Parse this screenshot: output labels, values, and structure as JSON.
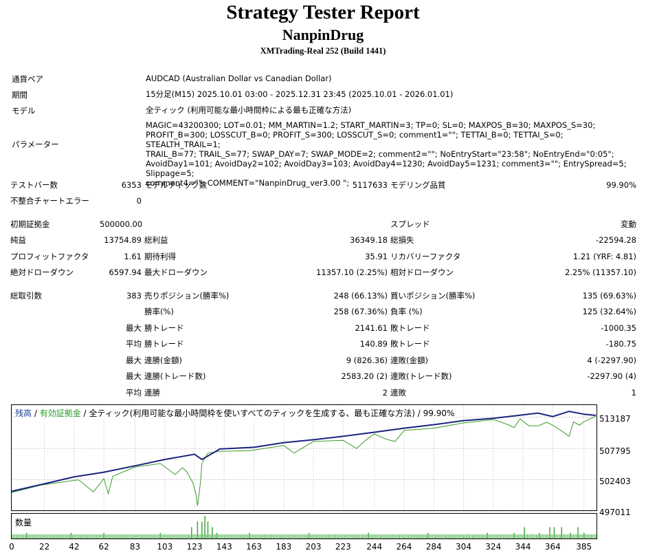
{
  "header": {
    "title": "Strategy Tester Report",
    "subtitle": "NanpinDrug",
    "account": "XMTrading-Real 252 (Build 1441)"
  },
  "info": {
    "pair_label": "通貨ペア",
    "pair": "AUDCAD (Australian Dollar vs Canadian Dollar)",
    "period_label": "期間",
    "period": "15分足(M15) 2025.10.01 03:00 - 2025.12.31 23:45 (2025.10.01 - 2026.01.01)",
    "model_label": "モデル",
    "model": "全ティック (利用可能な最小時間枠による最も正確な方法)",
    "params_label": "パラメーター",
    "params": "MAGIC=43200300; LOT=0.01; MM_MARTIN=1.2; START_MARTIN=3; TP=0; SL=0; MAXPOS_B=30; MAXPOS_S=30;\nPROFIT_B=300; LOSSCUT_B=0; PROFIT_S=300; LOSSCUT_S=0; comment1=\"\"; TETTAI_B=0; TETTAI_S=0; STEALTH_TRAIL=1;\nTRAIL_B=77; TRAIL_S=77; SWAP_DAY=7; SWAP_MODE=2; comment2=\"\"; NoEntryStart=\"23:58\"; NoEntryEnd=\"0:05\";\nAvoidDay1=101; AvoidDay2=102; AvoidDay3=103; AvoidDay4=1230; AvoidDay5=1231; comment3=\"\"; EntrySpread=5; Slippage=5;\ncomment4=\"\"; COMMENT=\"NanpinDrug_ver3.00 \";"
  },
  "stats": {
    "test_bars_label": "テストバー数",
    "test_bars": "6353",
    "model_ticks_label": "モデルティック数",
    "model_ticks": "5117633",
    "model_quality_label": "モデリング品質",
    "model_quality": "99.90%",
    "mismatch_label": "不整合チャートエラー",
    "mismatch": "0",
    "initial_deposit_label": "初期証拠金",
    "initial_deposit": "500000.00",
    "spread_label": "スプレッド",
    "spread": "変動",
    "net_profit_label": "純益",
    "net_profit": "13754.89",
    "gross_profit_label": "総利益",
    "gross_profit": "36349.18",
    "gross_loss_label": "総損失",
    "gross_loss": "-22594.28",
    "profit_factor_label": "プロフィットファクタ",
    "profit_factor": "1.61",
    "expected_payoff_label": "期待利得",
    "expected_payoff": "35.91",
    "recovery_factor_label": "リカバリーファクタ",
    "recovery_factor": "1.21 (YRF: 4.81)",
    "abs_drawdown_label": "絶対ドローダウン",
    "abs_drawdown": "6597.94",
    "max_drawdown_label": "最大ドローダウン",
    "max_drawdown": "11357.10 (2.25%)",
    "rel_drawdown_label": "相対ドローダウン",
    "rel_drawdown": "2.25% (11357.10)",
    "total_trades_label": "総取引数",
    "total_trades": "383",
    "short_label": "売りポジション(勝率%)",
    "short": "248 (66.13%)",
    "long_label": "買いポジション(勝率%)",
    "long": "135 (69.63%)",
    "win_rate_label": "勝率(%)",
    "win_rate": "258 (67.36%)",
    "loss_rate_label": "負率 (%)",
    "loss_rate": "125 (32.64%)",
    "max_label": "最大",
    "avg_label": "平均",
    "largest_win_label": "勝トレード",
    "largest_win": "2141.61",
    "largest_loss_label": "敗トレード",
    "largest_loss": "-1000.35",
    "avg_win_label": "勝トレード",
    "avg_win": "140.89",
    "avg_loss_label": "敗トレード",
    "avg_loss": "-180.75",
    "max_consec_wins_amt_label": "連勝(金額)",
    "max_consec_wins_amt": "9 (826.36)",
    "max_consec_losses_amt_label": "連敗(金額)",
    "max_consec_losses_amt": "4 (-2297.90)",
    "max_consec_wins_cnt_label": "連勝(トレード数)",
    "max_consec_wins_cnt": "2583.20 (2)",
    "max_consec_losses_cnt_label": "連敗(トレード数)",
    "max_consec_losses_cnt": "-2297.90 (4)",
    "avg_consec_wins_label": "連勝",
    "avg_consec_wins": "2",
    "avg_consec_losses_label": "連敗",
    "avg_consec_losses": "1"
  },
  "chart_data": {
    "type": "line",
    "legend": {
      "balance": "残高",
      "sep1": " / ",
      "equity": "有効証拠金",
      "rest": " / 全ティック(利用可能な最小時間枠を使いすべてのティックを生成する、最も正確な方法) / 99.90%"
    },
    "volume_label": "数量",
    "colors": {
      "balance": "#1a237e",
      "equity": "#3a9a2a",
      "volume": "#3aa83a"
    },
    "ylim": [
      497011,
      515400
    ],
    "xlim": [
      0,
      393
    ],
    "y_ticks": [
      "513187",
      "507795",
      "502403",
      "497011"
    ],
    "x_ticks": [
      "0",
      "22",
      "42",
      "62",
      "83",
      "103",
      "123",
      "143",
      "163",
      "183",
      "203",
      "223",
      "244",
      "264",
      "284",
      "304",
      "324",
      "344",
      "364",
      "385"
    ],
    "balance": {
      "x": [
        0,
        22,
        42,
        62,
        83,
        103,
        123,
        128,
        140,
        163,
        183,
        203,
        223,
        244,
        264,
        284,
        304,
        324,
        344,
        354,
        364,
        375,
        385,
        393
      ],
      "y": [
        500400,
        501700,
        502900,
        503700,
        504800,
        505900,
        506800,
        505900,
        507700,
        508000,
        508800,
        509300,
        509900,
        510600,
        511300,
        511900,
        512600,
        513000,
        513600,
        513900,
        513300,
        514200,
        513700,
        513500
      ]
    },
    "equity": {
      "x": [
        0,
        20,
        45,
        55,
        62,
        65,
        68,
        83,
        100,
        110,
        115,
        118,
        122,
        124,
        125,
        126,
        127,
        128,
        132,
        140,
        160,
        183,
        190,
        203,
        223,
        232,
        238,
        244,
        252,
        258,
        264,
        284,
        304,
        324,
        334,
        338,
        342,
        348,
        354,
        360,
        364,
        370,
        375,
        378,
        382,
        385,
        393
      ],
      "y": [
        500200,
        501500,
        502400,
        500300,
        502600,
        500000,
        503000,
        504600,
        505200,
        503300,
        504500,
        503700,
        501800,
        499900,
        497900,
        499800,
        502000,
        505200,
        507000,
        507300,
        507400,
        508300,
        507000,
        509000,
        509200,
        507800,
        509200,
        510300,
        509400,
        509000,
        510900,
        511300,
        512200,
        512800,
        511900,
        511400,
        512900,
        511700,
        511700,
        512300,
        511800,
        510800,
        509900,
        512400,
        511800,
        512400,
        513400
      ]
    },
    "volume": {
      "x": [
        10,
        40,
        62,
        100,
        121,
        125,
        128,
        130,
        132,
        135,
        138,
        160,
        200,
        240,
        280,
        320,
        338,
        345,
        355,
        362,
        365,
        370,
        376,
        381,
        385
      ],
      "v": [
        1,
        1,
        1,
        1,
        2,
        3,
        3,
        4,
        3,
        2,
        1,
        1,
        1,
        1,
        1,
        1,
        1,
        2,
        1,
        2,
        2,
        2,
        1,
        2,
        1
      ]
    }
  }
}
